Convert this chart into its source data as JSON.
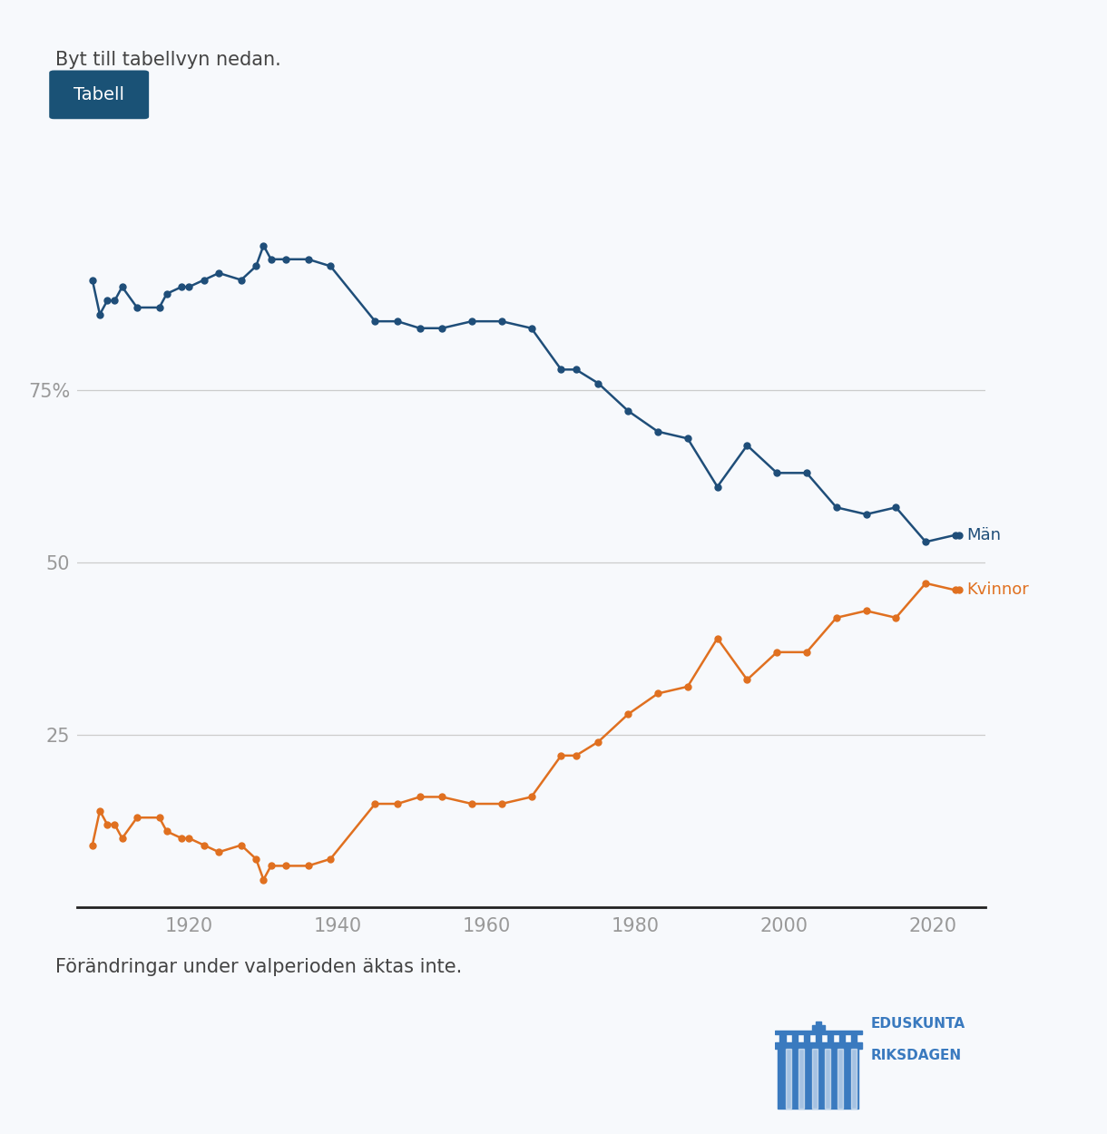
{
  "man_data": [
    [
      1907,
      91
    ],
    [
      1908,
      86
    ],
    [
      1909,
      88
    ],
    [
      1910,
      88
    ],
    [
      1911,
      90
    ],
    [
      1913,
      87
    ],
    [
      1916,
      87
    ],
    [
      1917,
      89
    ],
    [
      1919,
      90
    ],
    [
      1920,
      90
    ],
    [
      1922,
      91
    ],
    [
      1924,
      92
    ],
    [
      1927,
      91
    ],
    [
      1929,
      93
    ],
    [
      1930,
      96
    ],
    [
      1931,
      94
    ],
    [
      1933,
      94
    ],
    [
      1936,
      94
    ],
    [
      1939,
      93
    ],
    [
      1945,
      85
    ],
    [
      1948,
      85
    ],
    [
      1951,
      84
    ],
    [
      1954,
      84
    ],
    [
      1958,
      85
    ],
    [
      1962,
      85
    ],
    [
      1966,
      84
    ],
    [
      1970,
      78
    ],
    [
      1972,
      78
    ],
    [
      1975,
      76
    ],
    [
      1979,
      72
    ],
    [
      1983,
      69
    ],
    [
      1987,
      68
    ],
    [
      1991,
      61
    ],
    [
      1995,
      67
    ],
    [
      1999,
      63
    ],
    [
      2003,
      63
    ],
    [
      2007,
      58
    ],
    [
      2011,
      57
    ],
    [
      2015,
      58
    ],
    [
      2019,
      53
    ],
    [
      2023,
      54
    ]
  ],
  "kvinna_data": [
    [
      1907,
      9
    ],
    [
      1908,
      14
    ],
    [
      1909,
      12
    ],
    [
      1910,
      12
    ],
    [
      1911,
      10
    ],
    [
      1913,
      13
    ],
    [
      1916,
      13
    ],
    [
      1917,
      11
    ],
    [
      1919,
      10
    ],
    [
      1920,
      10
    ],
    [
      1922,
      9
    ],
    [
      1924,
      8
    ],
    [
      1927,
      9
    ],
    [
      1929,
      7
    ],
    [
      1930,
      4
    ],
    [
      1931,
      6
    ],
    [
      1933,
      6
    ],
    [
      1936,
      6
    ],
    [
      1939,
      7
    ],
    [
      1945,
      15
    ],
    [
      1948,
      15
    ],
    [
      1951,
      16
    ],
    [
      1954,
      16
    ],
    [
      1958,
      15
    ],
    [
      1962,
      15
    ],
    [
      1966,
      16
    ],
    [
      1970,
      22
    ],
    [
      1972,
      22
    ],
    [
      1975,
      24
    ],
    [
      1979,
      28
    ],
    [
      1983,
      31
    ],
    [
      1987,
      32
    ],
    [
      1991,
      39
    ],
    [
      1995,
      33
    ],
    [
      1999,
      37
    ],
    [
      2003,
      37
    ],
    [
      2007,
      42
    ],
    [
      2011,
      43
    ],
    [
      2015,
      42
    ],
    [
      2019,
      47
    ],
    [
      2023,
      46
    ]
  ],
  "man_color": "#1f4e79",
  "kvinna_color": "#e07020",
  "background_color": "#f7f9fc",
  "grid_color": "#cccccc",
  "yticks": [
    25,
    50,
    75
  ],
  "xticks": [
    1920,
    1940,
    1960,
    1980,
    2000,
    2020
  ],
  "man_label": "Män",
  "kvinna_label": "Kvinnor",
  "top_text": "Byt till tabellvyn nedan.",
  "button_text": "Tabell",
  "button_color": "#1a5276",
  "bottom_text": "Förändringar under valperioden äktas inte.",
  "logo_text_1": "EDUSKUNTA",
  "logo_text_2": "RIKSDAGEN",
  "building_color": "#3a7abf"
}
